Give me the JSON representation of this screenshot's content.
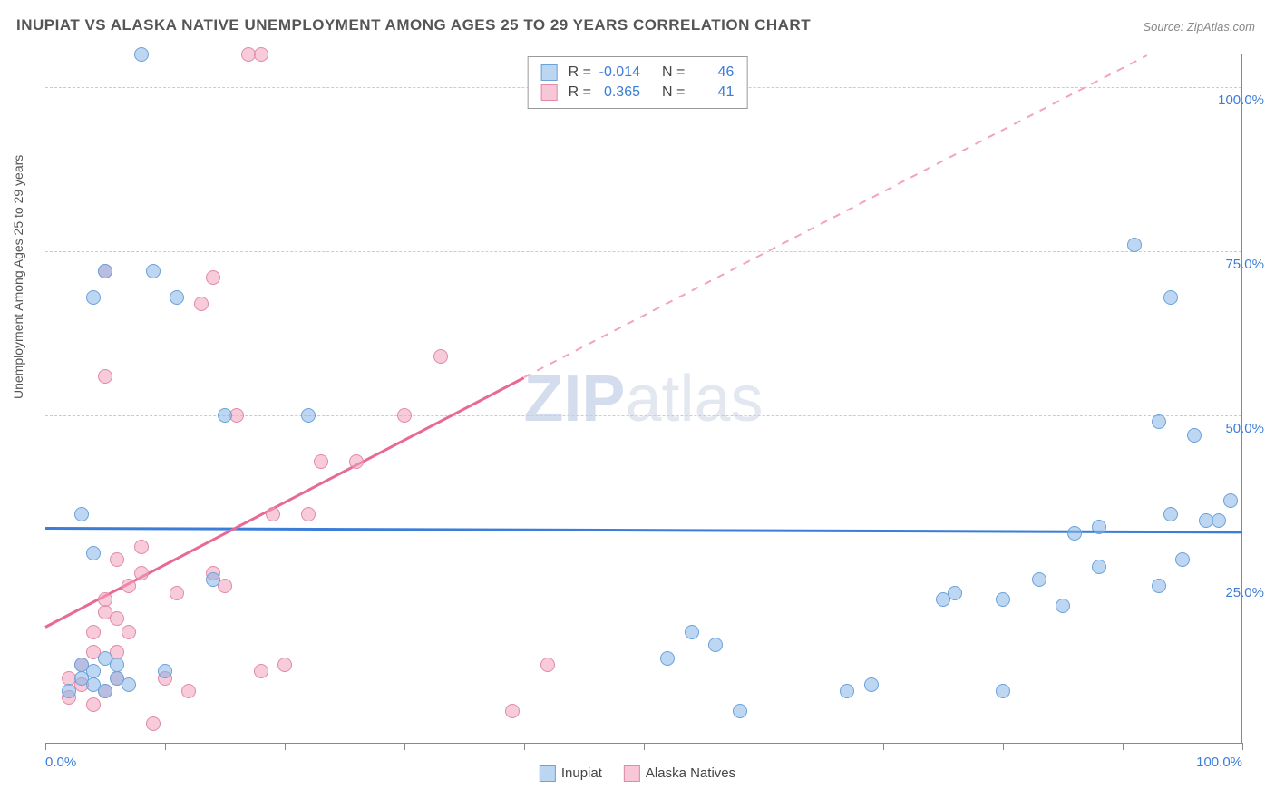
{
  "title": "INUPIAT VS ALASKA NATIVE UNEMPLOYMENT AMONG AGES 25 TO 29 YEARS CORRELATION CHART",
  "source": "Source: ZipAtlas.com",
  "watermark_a": "ZIP",
  "watermark_b": "atlas",
  "chart": {
    "type": "scatter",
    "xlim": [
      0,
      100
    ],
    "ylim": [
      0,
      105
    ],
    "y_ticks": [
      0,
      25,
      50,
      75,
      100
    ],
    "x_ticks_minor": [
      0,
      10,
      20,
      30,
      40,
      50,
      60,
      70,
      80,
      90,
      100
    ],
    "x_label_min": "0.0%",
    "x_label_max": "100.0%",
    "y_labels": [
      "25.0%",
      "50.0%",
      "75.0%",
      "100.0%"
    ],
    "y_axis_title": "Unemployment Among Ages 25 to 29 years",
    "plot_bg": "#ffffff",
    "grid_color": "#cccccc",
    "axis_color": "#888888",
    "series": {
      "inupiat": {
        "label": "Inupiat",
        "color_fill": "rgba(135,180,230,0.55)",
        "color_stroke": "#6aa2da",
        "swatch_fill": "#bcd6f2",
        "swatch_border": "#6aa2da",
        "r": -0.014,
        "n": 46,
        "points": [
          [
            2,
            8
          ],
          [
            3,
            10
          ],
          [
            3,
            12
          ],
          [
            4,
            9
          ],
          [
            4,
            11
          ],
          [
            5,
            8
          ],
          [
            5,
            13
          ],
          [
            6,
            10
          ],
          [
            6,
            12
          ],
          [
            7,
            9
          ],
          [
            4,
            29
          ],
          [
            3,
            35
          ],
          [
            4,
            68
          ],
          [
            5,
            72
          ],
          [
            9,
            72
          ],
          [
            11,
            68
          ],
          [
            8,
            105
          ],
          [
            10,
            11
          ],
          [
            14,
            25
          ],
          [
            15,
            50
          ],
          [
            22,
            50
          ],
          [
            52,
            13
          ],
          [
            54,
            17
          ],
          [
            56,
            15
          ],
          [
            58,
            5
          ],
          [
            67,
            8
          ],
          [
            69,
            9
          ],
          [
            75,
            22
          ],
          [
            76,
            23
          ],
          [
            80,
            8
          ],
          [
            80,
            22
          ],
          [
            83,
            25
          ],
          [
            85,
            21
          ],
          [
            86,
            32
          ],
          [
            88,
            27
          ],
          [
            88,
            33
          ],
          [
            91,
            76
          ],
          [
            93,
            49
          ],
          [
            93,
            24
          ],
          [
            94,
            35
          ],
          [
            94,
            68
          ],
          [
            95,
            28
          ],
          [
            96,
            47
          ],
          [
            97,
            34
          ],
          [
            98,
            34
          ],
          [
            99,
            37
          ]
        ],
        "trend": {
          "y_at_x0": 33.0,
          "y_at_x100": 32.4,
          "color": "#3b7dd8",
          "width": 3
        }
      },
      "alaska_natives": {
        "label": "Alaska Natives",
        "color_fill": "rgba(240,160,185,0.55)",
        "color_stroke": "#e28aa5",
        "swatch_fill": "#f6c7d6",
        "swatch_border": "#e28aa5",
        "r": 0.365,
        "n": 41,
        "points": [
          [
            2,
            7
          ],
          [
            2,
            10
          ],
          [
            3,
            9
          ],
          [
            3,
            12
          ],
          [
            4,
            6
          ],
          [
            4,
            14
          ],
          [
            4,
            17
          ],
          [
            5,
            8
          ],
          [
            5,
            20
          ],
          [
            5,
            22
          ],
          [
            6,
            10
          ],
          [
            6,
            14
          ],
          [
            6,
            19
          ],
          [
            6,
            28
          ],
          [
            7,
            17
          ],
          [
            7,
            24
          ],
          [
            8,
            26
          ],
          [
            8,
            30
          ],
          [
            5,
            56
          ],
          [
            5,
            72
          ],
          [
            9,
            3
          ],
          [
            10,
            10
          ],
          [
            11,
            23
          ],
          [
            12,
            8
          ],
          [
            13,
            67
          ],
          [
            14,
            71
          ],
          [
            14,
            26
          ],
          [
            15,
            24
          ],
          [
            16,
            50
          ],
          [
            17,
            105
          ],
          [
            18,
            105
          ],
          [
            18,
            11
          ],
          [
            19,
            35
          ],
          [
            20,
            12
          ],
          [
            22,
            35
          ],
          [
            23,
            43
          ],
          [
            26,
            43
          ],
          [
            30,
            50
          ],
          [
            33,
            59
          ],
          [
            39,
            5
          ],
          [
            42,
            12
          ]
        ],
        "trend_solid": {
          "x0": 0,
          "y0": 18,
          "x1": 40,
          "y1": 56,
          "color": "#e86a94",
          "width": 3
        },
        "trend_dashed": {
          "x0": 40,
          "y0": 56,
          "x1": 92,
          "y1": 105,
          "color": "#f2a3bd",
          "width": 2
        }
      }
    }
  },
  "correlation_box": {
    "rows": [
      {
        "swatch_fill": "#bcd6f2",
        "swatch_border": "#6aa2da",
        "r_label": "R =",
        "r": "-0.014",
        "n_label": "N =",
        "n": "46"
      },
      {
        "swatch_fill": "#f6c7d6",
        "swatch_border": "#e28aa5",
        "r_label": "R =",
        "r": "0.365",
        "n_label": "N =",
        "n": "41"
      }
    ]
  },
  "legend_bottom": [
    {
      "swatch_fill": "#bcd6f2",
      "swatch_border": "#6aa2da",
      "label": "Inupiat"
    },
    {
      "swatch_fill": "#f6c7d6",
      "swatch_border": "#e28aa5",
      "label": "Alaska Natives"
    }
  ]
}
